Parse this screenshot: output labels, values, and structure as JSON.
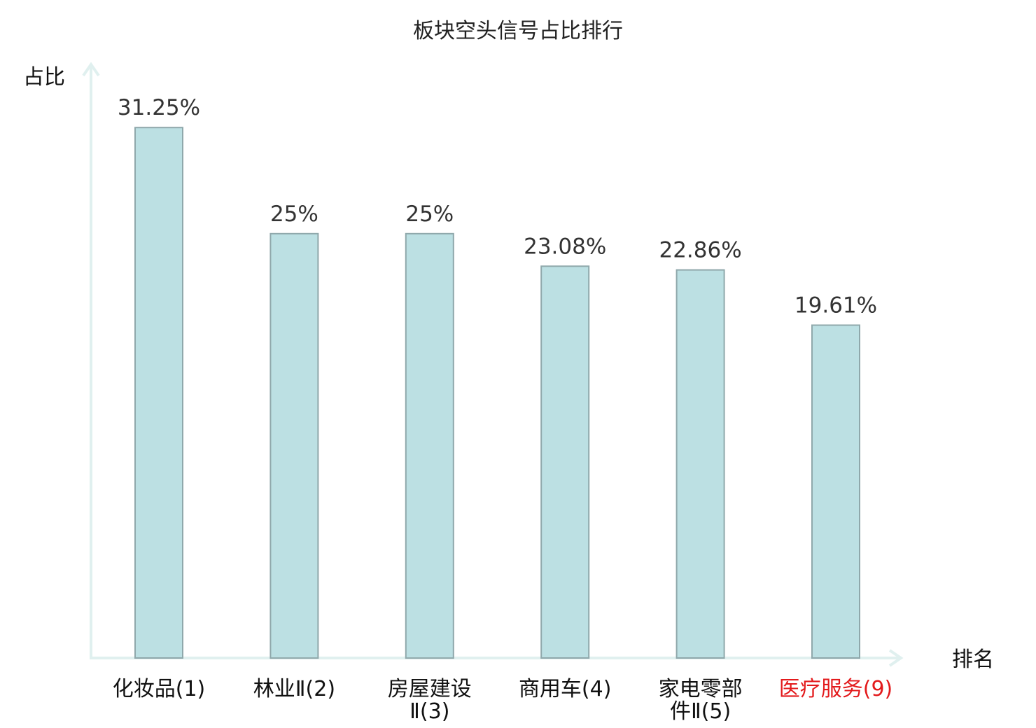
{
  "chart_data": {
    "type": "bar",
    "title": "板块空头信号占比排行",
    "ylabel": "占比",
    "xlabel": "排名",
    "categories": [
      [
        "化妆品(1)"
      ],
      [
        "林业Ⅱ(2)"
      ],
      [
        "房屋建设",
        "Ⅱ(3)"
      ],
      [
        "商用车(4)"
      ],
      [
        "家电零部",
        "件Ⅱ(5)"
      ],
      [
        "医疗服务(9)"
      ]
    ],
    "values": [
      31.25,
      25,
      25,
      23.08,
      22.86,
      19.61
    ],
    "value_labels": [
      "31.25%",
      "25%",
      "25%",
      "23.08%",
      "22.86%",
      "19.61%"
    ],
    "highlight_index": 5,
    "ylim": [
      0,
      35
    ],
    "grid": false,
    "colors": {
      "bar_fill": "#bce0e3",
      "bar_stroke": "#8fa8ab",
      "axis": "#e0f0ef",
      "highlight_label": "#e31a1c"
    }
  }
}
